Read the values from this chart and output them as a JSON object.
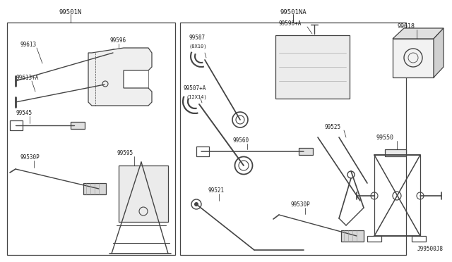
{
  "bg_color": "#f8f8f8",
  "line_color": "#444444",
  "text_color": "#222222",
  "fig_width": 6.4,
  "fig_height": 3.72,
  "dpi": 100,
  "box1_label": "99501N",
  "box2_label": "99501NA",
  "bottom_label": "J99500J8",
  "lc": "#444444",
  "tc": "#222222"
}
